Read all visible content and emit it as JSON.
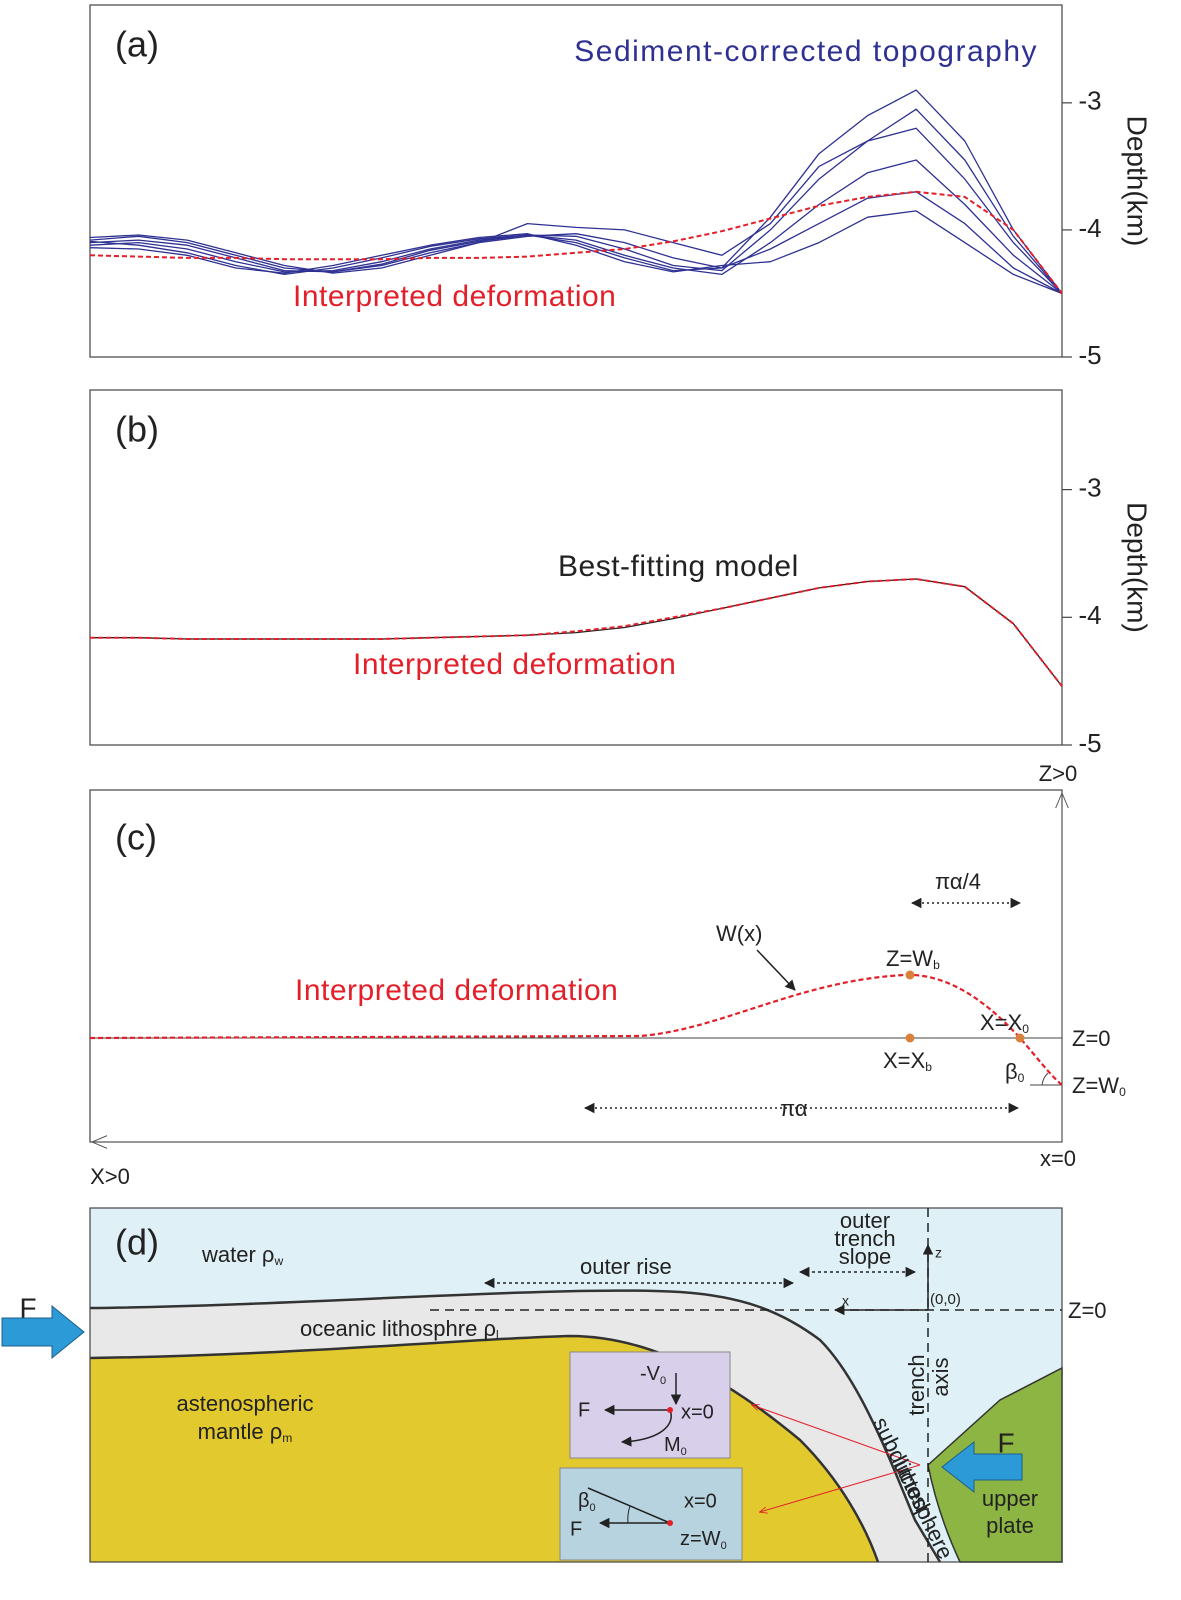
{
  "chart_data": [
    {
      "type": "line",
      "title": "(a)",
      "y_label": "Depth(km)",
      "ylim": [
        -5,
        -2.23
      ],
      "yticks": [
        -3,
        -4,
        -5
      ],
      "series": [
        {
          "name": "Sediment-corrected topography",
          "color": "#2e3192",
          "values": [
            -4.08,
            -4.05,
            -4.1,
            -4.2,
            -4.3,
            -4.33,
            -4.28,
            -4.18,
            -4.1,
            -4.05,
            -4.03,
            -4.1,
            -4.22,
            -4.3,
            -3.9,
            -3.4,
            -3.1,
            -2.9,
            -3.3,
            -4.0,
            -4.5
          ]
        },
        {
          "color": "#2e3192",
          "values": [
            -4.1,
            -4.08,
            -4.12,
            -4.22,
            -4.32,
            -4.33,
            -4.27,
            -4.16,
            -4.09,
            -4.04,
            -4.05,
            -4.15,
            -4.28,
            -4.32,
            -4.0,
            -3.6,
            -3.3,
            -3.2,
            -3.6,
            -4.1,
            -4.5
          ]
        },
        {
          "color": "#2e3192",
          "values": [
            -4.12,
            -4.1,
            -4.15,
            -4.25,
            -4.33,
            -4.32,
            -4.25,
            -4.15,
            -4.08,
            -4.04,
            -4.08,
            -4.2,
            -4.3,
            -4.35,
            -4.1,
            -3.8,
            -3.55,
            -3.45,
            -3.8,
            -4.2,
            -4.5
          ]
        },
        {
          "color": "#2e3192",
          "values": [
            -4.09,
            -4.12,
            -4.18,
            -4.28,
            -4.35,
            -4.3,
            -4.22,
            -4.13,
            -4.07,
            -4.04,
            -4.1,
            -4.22,
            -4.32,
            -4.3,
            -4.15,
            -3.95,
            -3.75,
            -3.7,
            -3.95,
            -4.3,
            -4.5
          ]
        },
        {
          "color": "#2e3192",
          "values": [
            -4.14,
            -4.15,
            -4.2,
            -4.3,
            -4.34,
            -4.28,
            -4.2,
            -4.12,
            -4.06,
            -4.03,
            -4.12,
            -4.25,
            -4.33,
            -4.28,
            -4.25,
            -4.1,
            -3.9,
            -3.85,
            -4.1,
            -4.35,
            -4.5
          ]
        },
        {
          "color": "#2e3192",
          "values": [
            -4.06,
            -4.04,
            -4.08,
            -4.18,
            -4.28,
            -4.34,
            -4.3,
            -4.2,
            -4.1,
            -3.95,
            -3.98,
            -4.0,
            -4.1,
            -4.2,
            -3.95,
            -3.5,
            -3.3,
            -3.05,
            -3.45,
            -4.05,
            -4.5
          ]
        },
        {
          "name": "Interpreted deformation",
          "color": "#e3202a",
          "style": "dashed",
          "values": [
            -4.2,
            -4.21,
            -4.22,
            -4.22,
            -4.23,
            -4.23,
            -4.23,
            -4.22,
            -4.22,
            -4.21,
            -4.18,
            -4.15,
            -4.09,
            -4.01,
            -3.91,
            -3.81,
            -3.74,
            -3.7,
            -3.74,
            -4.0,
            -4.5
          ]
        }
      ]
    },
    {
      "type": "line",
      "title": "(b)",
      "y_label": "Depth(km)",
      "ylim": [
        -5,
        -2.22
      ],
      "yticks": [
        -3,
        -4,
        -5
      ],
      "series": [
        {
          "name": "Best-fitting model",
          "color": "#222222",
          "values": [
            -4.16,
            -4.16,
            -4.17,
            -4.17,
            -4.17,
            -4.17,
            -4.17,
            -4.16,
            -4.15,
            -4.14,
            -4.12,
            -4.08,
            -4.01,
            -3.93,
            -3.85,
            -3.77,
            -3.72,
            -3.7,
            -3.76,
            -4.05,
            -4.54
          ]
        },
        {
          "name": "Interpreted deformation",
          "color": "#e3202a",
          "style": "dashed",
          "values": [
            -4.16,
            -4.16,
            -4.17,
            -4.17,
            -4.17,
            -4.17,
            -4.17,
            -4.16,
            -4.15,
            -4.14,
            -4.11,
            -4.07,
            -4.0,
            -3.93,
            -3.85,
            -3.77,
            -3.72,
            -3.7,
            -3.76,
            -4.05,
            -4.54
          ]
        }
      ]
    }
  ],
  "panel_c": {
    "label": "(c)",
    "z_axis": "Z>0",
    "x_axis": "X>0",
    "x_origin": "x=0",
    "z_zero": "Z=0",
    "curve": "Interpreted deformation",
    "w": "W(x)",
    "quarter": "πα/4",
    "full": "πα",
    "zwb": {
      "text": "Z=W",
      "sub": "b"
    },
    "xx0": {
      "text": "X=X",
      "sub": "0"
    },
    "xxb": {
      "text": "X=X",
      "sub": "b"
    },
    "beta": {
      "text": "β",
      "sub": "0"
    },
    "zw0": {
      "text": "Z=W",
      "sub": "0"
    }
  },
  "panel_d": {
    "label": "(d)",
    "water": {
      "text": "water ρ",
      "sub": "w"
    },
    "outer_rise": "outer rise",
    "slope": [
      "outer",
      "trench",
      "slope"
    ],
    "z": "z",
    "x": "x",
    "origin": "(0,0)",
    "z_zero": "Z=0",
    "lithosphere": {
      "text": "oceanic lithosphre ρ",
      "sub": "l"
    },
    "mantle": [
      "astenospheric",
      {
        "text": "mantle ρ",
        "sub": "m"
      }
    ],
    "trench": [
      "trench",
      "axis"
    ],
    "subducted": [
      "subducted",
      "lithosphere"
    ],
    "force": [
      "F",
      "F"
    ],
    "upper": [
      "upper",
      "plate"
    ],
    "inset1": {
      "v": {
        "text": "-V",
        "sub": "0"
      },
      "f": "F",
      "x": "x=0",
      "m": {
        "text": "M",
        "sub": "0"
      }
    },
    "inset2": {
      "beta": {
        "text": "β",
        "sub": "0"
      },
      "x": "x=0",
      "f": "F",
      "z": {
        "text": "z=W",
        "sub": "0"
      }
    }
  }
}
